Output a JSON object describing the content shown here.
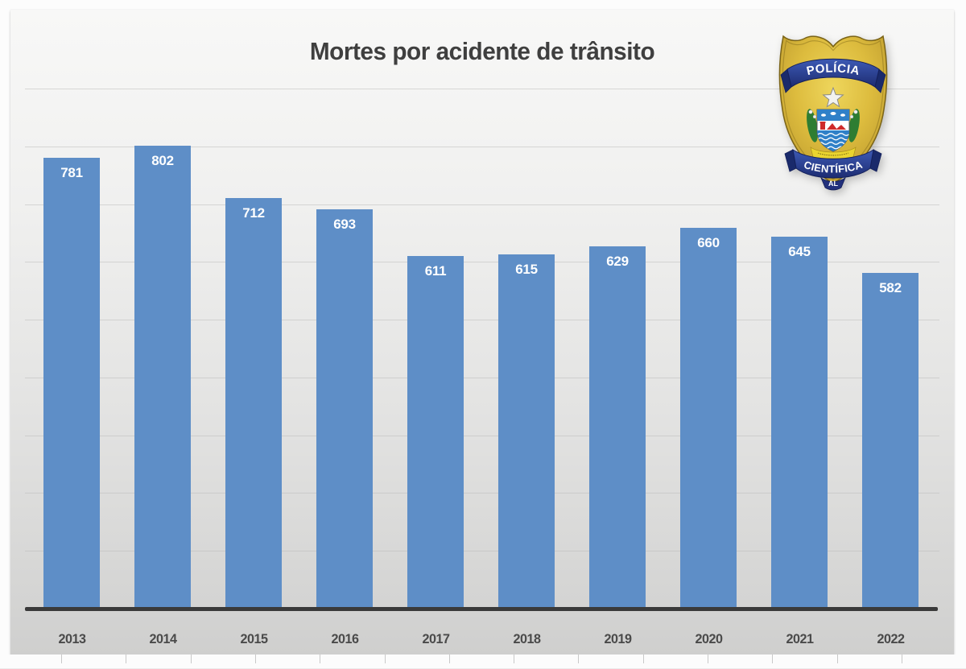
{
  "page": {
    "title": "Mortes por acidente de trânsito"
  },
  "badge": {
    "description": "Polícia Científica de Alagoas shield badge",
    "top_ribbon": "POLÍCIA",
    "bottom_ribbon": "CIENTÍFICA",
    "state_label": "AL",
    "colors": {
      "gold": "#ddbc3e",
      "ribbon_blue": "#24358c",
      "ribbon_text": "#ffffff"
    }
  },
  "chart_data": {
    "type": "bar",
    "title": "Mortes por acidente de trânsito",
    "categories": [
      "2013",
      "2014",
      "2015",
      "2016",
      "2017",
      "2018",
      "2019",
      "2020",
      "2021",
      "2022"
    ],
    "values": [
      781,
      802,
      712,
      693,
      611,
      615,
      629,
      660,
      645,
      582
    ],
    "xlabel": "",
    "ylabel": "",
    "ylim": [
      0,
      900
    ],
    "grid_interval": 100,
    "grid": "horizontal",
    "legend": "none",
    "bar_color": "#5e8ec7",
    "value_label_color": "#ffffff",
    "axis_line_color": "#3a3a3a"
  }
}
